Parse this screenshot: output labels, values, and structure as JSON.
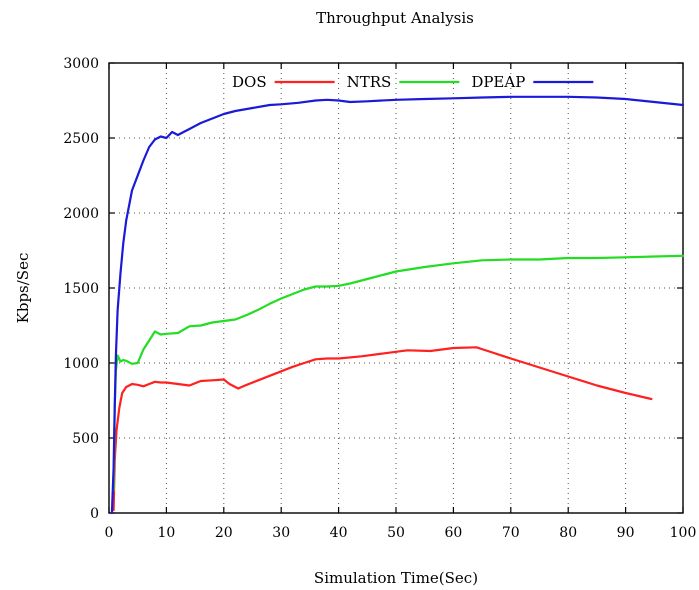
{
  "chart_data": {
    "type": "line",
    "title": "Throughput Analysis",
    "xlabel": "Simulation Time(Sec)",
    "ylabel": "Kbps/Sec",
    "xlim": [
      0,
      100
    ],
    "ylim": [
      0,
      3000
    ],
    "xticks": [
      0,
      10,
      20,
      30,
      40,
      50,
      60,
      70,
      80,
      90,
      100
    ],
    "yticks": [
      0,
      500,
      1000,
      1500,
      2000,
      2500,
      3000
    ],
    "grid": true,
    "legend_position": "top-center",
    "series": [
      {
        "name": "DOS",
        "color": "#ff2020",
        "points": [
          [
            0.8,
            20
          ],
          [
            1.0,
            350
          ],
          [
            1.3,
            550
          ],
          [
            1.8,
            700
          ],
          [
            2.3,
            800
          ],
          [
            3,
            840
          ],
          [
            4,
            860
          ],
          [
            5,
            855
          ],
          [
            6,
            845
          ],
          [
            7,
            860
          ],
          [
            8,
            875
          ],
          [
            9,
            870
          ],
          [
            10,
            870
          ],
          [
            12,
            860
          ],
          [
            14,
            850
          ],
          [
            16,
            880
          ],
          [
            18,
            885
          ],
          [
            20,
            890
          ],
          [
            21,
            860
          ],
          [
            22.5,
            830
          ],
          [
            24,
            855
          ],
          [
            26,
            885
          ],
          [
            28,
            915
          ],
          [
            30,
            945
          ],
          [
            32,
            975
          ],
          [
            34,
            1000
          ],
          [
            36,
            1025
          ],
          [
            38,
            1030
          ],
          [
            40,
            1030
          ],
          [
            44,
            1045
          ],
          [
            48,
            1065
          ],
          [
            52,
            1085
          ],
          [
            56,
            1080
          ],
          [
            60,
            1100
          ],
          [
            64,
            1105
          ],
          [
            66,
            1080
          ],
          [
            70,
            1030
          ],
          [
            75,
            970
          ],
          [
            80,
            910
          ],
          [
            85,
            850
          ],
          [
            90,
            800
          ],
          [
            94.5,
            760
          ]
        ]
      },
      {
        "name": "NTRS",
        "color": "#22dd22",
        "points": [
          [
            0.8,
            150
          ],
          [
            1.0,
            700
          ],
          [
            1.2,
            950
          ],
          [
            1.5,
            1050
          ],
          [
            2,
            1010
          ],
          [
            2.5,
            1020
          ],
          [
            3,
            1015
          ],
          [
            4,
            995
          ],
          [
            5,
            1000
          ],
          [
            6,
            1090
          ],
          [
            7,
            1150
          ],
          [
            8,
            1210
          ],
          [
            9,
            1190
          ],
          [
            10,
            1195
          ],
          [
            12,
            1200
          ],
          [
            14,
            1245
          ],
          [
            16,
            1250
          ],
          [
            18,
            1270
          ],
          [
            20,
            1280
          ],
          [
            22,
            1290
          ],
          [
            24,
            1320
          ],
          [
            26,
            1355
          ],
          [
            28,
            1395
          ],
          [
            30,
            1430
          ],
          [
            32,
            1460
          ],
          [
            34,
            1490
          ],
          [
            36,
            1510
          ],
          [
            38,
            1510
          ],
          [
            40,
            1515
          ],
          [
            42,
            1530
          ],
          [
            45,
            1560
          ],
          [
            48,
            1590
          ],
          [
            50,
            1610
          ],
          [
            55,
            1640
          ],
          [
            60,
            1665
          ],
          [
            65,
            1685
          ],
          [
            70,
            1690
          ],
          [
            75,
            1690
          ],
          [
            80,
            1700
          ],
          [
            85,
            1700
          ],
          [
            90,
            1705
          ],
          [
            95,
            1710
          ],
          [
            100,
            1715
          ]
        ]
      },
      {
        "name": "DPEAP",
        "color": "#1a1ad8",
        "points": [
          [
            0.5,
            0
          ],
          [
            0.8,
            300
          ],
          [
            1.0,
            700
          ],
          [
            1.2,
            1050
          ],
          [
            1.5,
            1350
          ],
          [
            2,
            1600
          ],
          [
            2.5,
            1800
          ],
          [
            3,
            1950
          ],
          [
            3.5,
            2050
          ],
          [
            4,
            2150
          ],
          [
            5,
            2250
          ],
          [
            6,
            2350
          ],
          [
            7,
            2440
          ],
          [
            8,
            2490
          ],
          [
            9,
            2510
          ],
          [
            10,
            2500
          ],
          [
            11,
            2540
          ],
          [
            12,
            2520
          ],
          [
            13,
            2540
          ],
          [
            14,
            2560
          ],
          [
            16,
            2600
          ],
          [
            18,
            2630
          ],
          [
            20,
            2660
          ],
          [
            22,
            2680
          ],
          [
            25,
            2700
          ],
          [
            28,
            2720
          ],
          [
            30,
            2725
          ],
          [
            33,
            2735
          ],
          [
            36,
            2750
          ],
          [
            38,
            2755
          ],
          [
            40,
            2750
          ],
          [
            42,
            2740
          ],
          [
            45,
            2745
          ],
          [
            50,
            2755
          ],
          [
            55,
            2760
          ],
          [
            60,
            2765
          ],
          [
            65,
            2770
          ],
          [
            70,
            2775
          ],
          [
            75,
            2775
          ],
          [
            80,
            2775
          ],
          [
            85,
            2770
          ],
          [
            90,
            2760
          ],
          [
            95,
            2740
          ],
          [
            100,
            2720
          ]
        ]
      }
    ]
  }
}
